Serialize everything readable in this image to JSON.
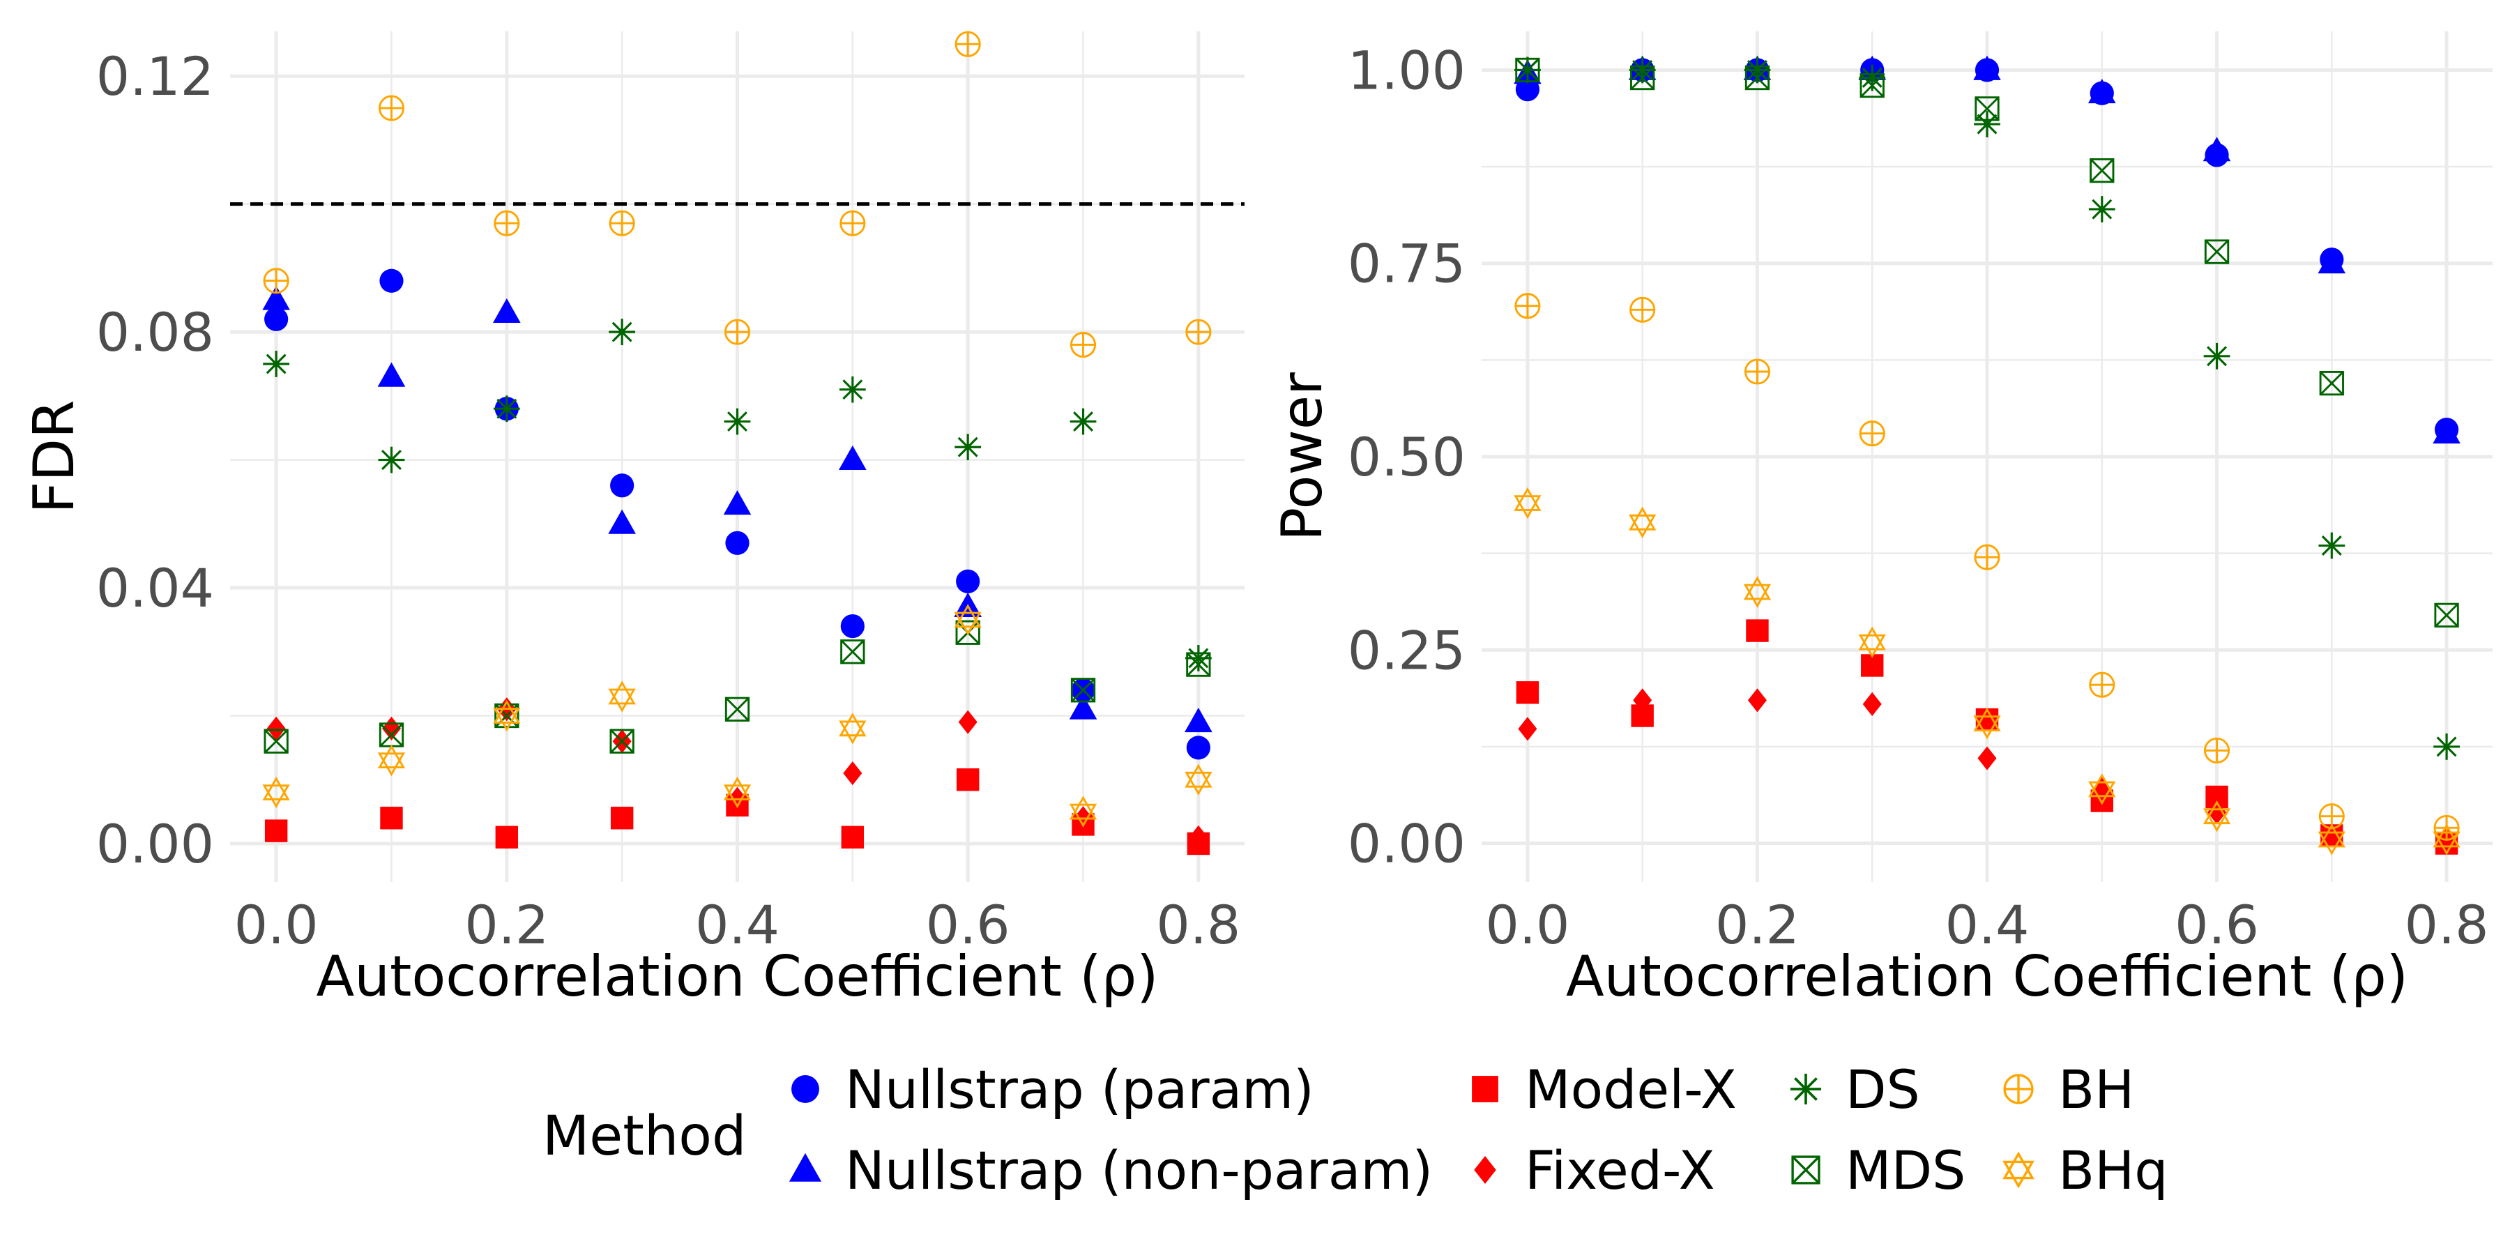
{
  "chart_data": [
    {
      "type": "scatter",
      "panel": "left",
      "xlabel": "Autocorrelation Coefficient (ρ)",
      "ylabel": "FDR",
      "xlim": [
        -0.04,
        0.84
      ],
      "ylim": [
        -0.006,
        0.127
      ],
      "xticks": [
        0.0,
        0.2,
        0.4,
        0.6,
        0.8
      ],
      "xtick_labels": [
        "0.0",
        "0.2",
        "0.4",
        "0.6",
        "0.8"
      ],
      "yticks": [
        0.0,
        0.04,
        0.08,
        0.12
      ],
      "ytick_labels": [
        "0.00",
        "0.04",
        "0.08",
        "0.12"
      ],
      "reference_line": 0.1,
      "x": [
        0.0,
        0.1,
        0.2,
        0.3,
        0.4,
        0.5,
        0.6,
        0.7,
        0.8
      ],
      "series": [
        {
          "name": "Nullstrap (param)",
          "values": [
            0.082,
            0.088,
            0.068,
            0.056,
            0.047,
            0.034,
            0.041,
            0.024,
            0.015
          ]
        },
        {
          "name": "Nullstrap (non-param)",
          "values": [
            0.085,
            0.073,
            0.083,
            0.05,
            0.053,
            0.06,
            0.037,
            0.021,
            0.019
          ]
        },
        {
          "name": "Model-X",
          "values": [
            0.002,
            0.004,
            0.001,
            0.004,
            0.006,
            0.001,
            0.01,
            0.003,
            0.0
          ]
        },
        {
          "name": "Fixed-X",
          "values": [
            0.018,
            0.018,
            0.021,
            0.016,
            0.007,
            0.011,
            0.019,
            0.004,
            0.001
          ]
        },
        {
          "name": "DS",
          "values": [
            0.075,
            0.06,
            0.068,
            0.08,
            0.066,
            0.071,
            0.062,
            0.066,
            0.029
          ]
        },
        {
          "name": "MDS",
          "values": [
            0.016,
            0.017,
            0.02,
            0.016,
            0.021,
            0.03,
            0.033,
            0.024,
            0.028
          ]
        },
        {
          "name": "BH",
          "values": [
            0.088,
            0.115,
            0.097,
            0.097,
            0.08,
            0.097,
            0.125,
            0.078,
            0.08
          ]
        },
        {
          "name": "BHq",
          "values": [
            0.008,
            0.013,
            0.02,
            0.023,
            0.008,
            0.018,
            0.035,
            0.005,
            0.01
          ]
        }
      ]
    },
    {
      "type": "scatter",
      "panel": "right",
      "xlabel": "Autocorrelation Coefficient (ρ)",
      "ylabel": "Power",
      "xlim": [
        -0.04,
        0.84
      ],
      "ylim": [
        -0.05,
        1.05
      ],
      "xticks": [
        0.0,
        0.2,
        0.4,
        0.6,
        0.8
      ],
      "xtick_labels": [
        "0.0",
        "0.2",
        "0.4",
        "0.6",
        "0.8"
      ],
      "yticks": [
        0.0,
        0.25,
        0.5,
        0.75,
        1.0
      ],
      "ytick_labels": [
        "0.00",
        "0.25",
        "0.50",
        "0.75",
        "1.00"
      ],
      "x": [
        0.0,
        0.1,
        0.2,
        0.3,
        0.4,
        0.5,
        0.6,
        0.7,
        0.8
      ],
      "series": [
        {
          "name": "Nullstrap (param)",
          "values": [
            0.975,
            1.0,
            1.0,
            1.0,
            1.0,
            0.97,
            0.89,
            0.755,
            0.535
          ]
        },
        {
          "name": "Nullstrap (non-param)",
          "values": [
            0.995,
            1.0,
            1.0,
            1.0,
            1.0,
            0.97,
            0.895,
            0.75,
            0.53
          ]
        },
        {
          "name": "Model-X",
          "values": [
            0.195,
            0.165,
            0.275,
            0.23,
            0.16,
            0.055,
            0.06,
            0.01,
            0.0
          ]
        },
        {
          "name": "Fixed-X",
          "values": [
            0.148,
            0.185,
            0.185,
            0.18,
            0.11,
            0.07,
            0.04,
            0.01,
            0.005
          ]
        },
        {
          "name": "DS",
          "values": [
            1.0,
            1.0,
            1.0,
            0.99,
            0.93,
            0.82,
            0.63,
            0.385,
            0.125
          ]
        },
        {
          "name": "MDS",
          "values": [
            1.0,
            0.99,
            0.99,
            0.98,
            0.95,
            0.87,
            0.765,
            0.595,
            0.295
          ]
        },
        {
          "name": "BH",
          "values": [
            0.695,
            0.69,
            0.61,
            0.53,
            0.37,
            0.205,
            0.12,
            0.035,
            0.02
          ]
        },
        {
          "name": "BHq",
          "values": [
            0.44,
            0.415,
            0.325,
            0.26,
            0.155,
            0.07,
            0.035,
            0.005,
            0.005
          ]
        }
      ]
    }
  ],
  "legend": {
    "title": "Method",
    "items": [
      {
        "label": "Nullstrap (param)",
        "shape": "circle",
        "color": "#0000FF"
      },
      {
        "label": "Nullstrap (non-param)",
        "shape": "triangle",
        "color": "#0000FF"
      },
      {
        "label": "Model-X",
        "shape": "square",
        "color": "#FF0000"
      },
      {
        "label": "Fixed-X",
        "shape": "diamond",
        "color": "#FF0000"
      },
      {
        "label": "DS",
        "shape": "asterisk",
        "color": "#006400"
      },
      {
        "label": "MDS",
        "shape": "boxed-x",
        "color": "#006400"
      },
      {
        "label": "BH",
        "shape": "circle-plus",
        "color": "#FFA500"
      },
      {
        "label": "BHq",
        "shape": "star-of-david",
        "color": "#FFA500"
      }
    ]
  }
}
